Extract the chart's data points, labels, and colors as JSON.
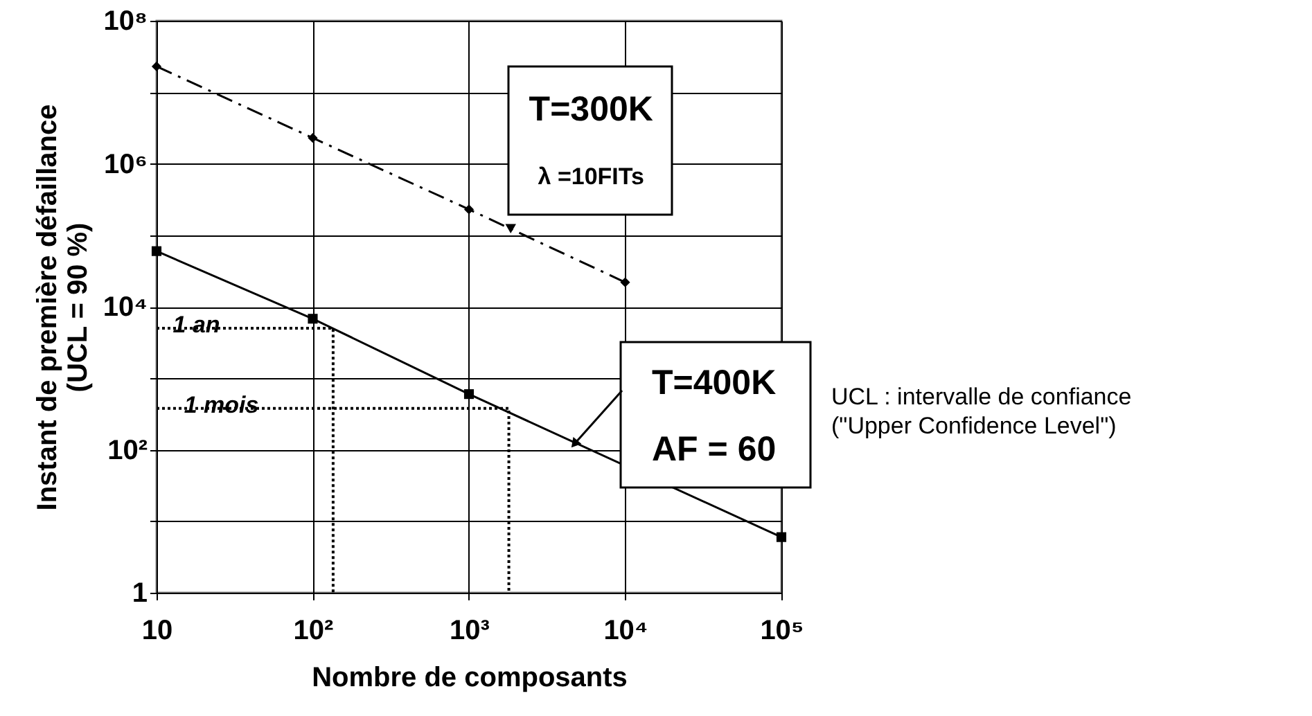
{
  "chart_data": {
    "type": "line",
    "xlabel": "Nombre de composants",
    "ylabel": "Instant de première défaillance\n(UCL = 90 %)",
    "log": "xy",
    "grid": true,
    "xlim": [
      10,
      100000
    ],
    "xticks": [
      10,
      {
        "value": 100,
        "label": "10²"
      },
      {
        "value": 1000,
        "label": "10³"
      },
      {
        "value": 10000,
        "label": "10⁴"
      },
      {
        "value": 100000,
        "label": "10⁵"
      }
    ],
    "ylim": [
      1,
      100000000
    ],
    "yticks": [
      1,
      {
        "value": 10,
        "label": null
      },
      {
        "value": 100,
        "label": "10²"
      },
      {
        "value": 1000,
        "label": null
      },
      {
        "value": 10000,
        "label": "10⁴"
      },
      {
        "value": 100000,
        "label": null
      },
      {
        "value": 1000000,
        "label": "10⁶"
      },
      {
        "value": 10000000,
        "label": null
      },
      {
        "value": 100000000,
        "label": "10⁸"
      }
    ],
    "series": [
      {
        "color": "#000000",
        "marker": "diamond",
        "line_style": "dashed",
        "x": [
          10,
          100,
          1000,
          10000
        ],
        "values": [
          23000000,
          2300000,
          230000,
          22000
        ]
      },
      {
        "color": "#000000",
        "marker": "square",
        "line_style": "solid",
        "x": [
          10,
          100,
          1000,
          100000
        ],
        "values": [
          60000,
          6800,
          600,
          6
        ]
      },
      {
        "color": "#000000",
        "marker": "none",
        "line_style": "dotted",
        "x": [
          10,
          135,
          135
        ],
        "values": [
          5000,
          5000,
          1
        ]
      },
      {
        "color": "#000000",
        "marker": "none",
        "line_style": "dotted",
        "x": [
          10,
          1800,
          1800
        ],
        "values": [
          380,
          380,
          1
        ]
      }
    ],
    "annotations": [
      {
        "text": "1 an",
        "x": 18,
        "y": 5000
      },
      {
        "text": "1 mois",
        "x": 26,
        "y": 380
      },
      {
        "text": "T=300K",
        "x": 1850,
        "y": 130000
      },
      {
        "text": "λ =10FITs",
        "x": 1850,
        "y": 130000
      },
      {
        "text": "T=400K",
        "x": 4800,
        "y": 125
      },
      {
        "text": "AF = 60",
        "x": 4800,
        "y": 125
      },
      "UCL :  intervalle de confiance",
      "(\"Upper Confidence Level\")"
    ]
  }
}
